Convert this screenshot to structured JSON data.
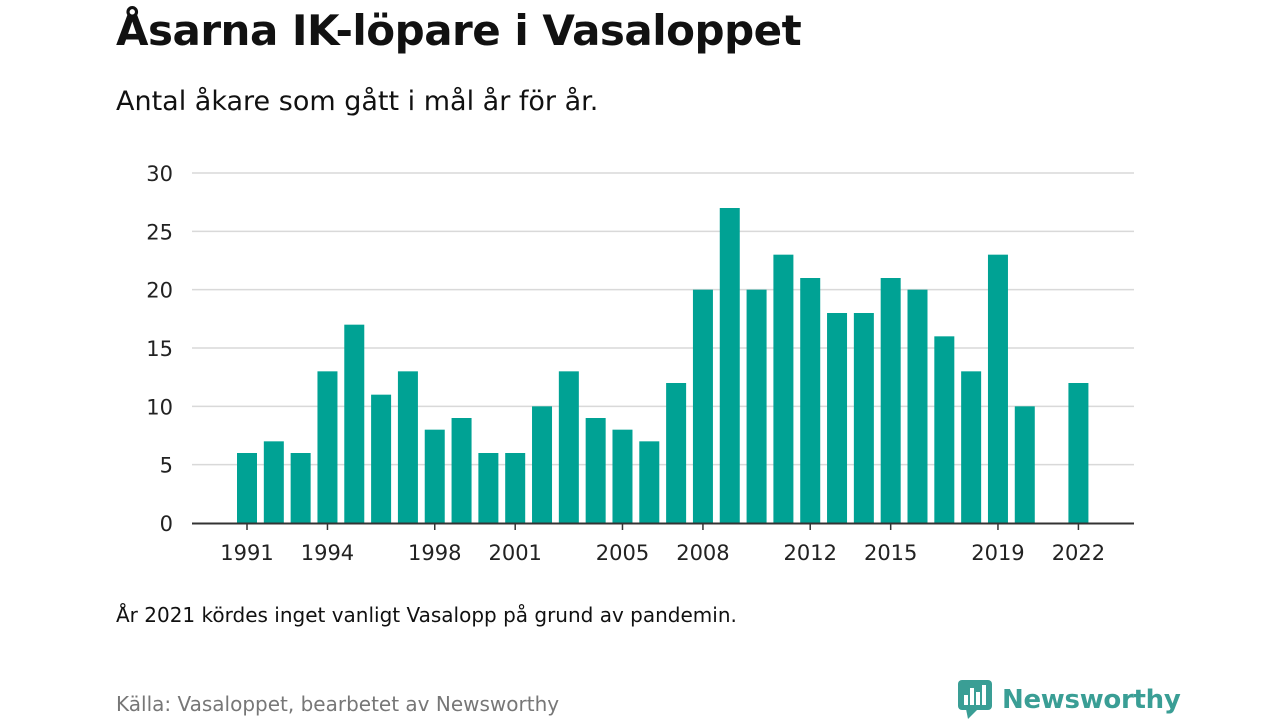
{
  "title": "Åsarna IK-löpare i Vasaloppet",
  "subtitle": "Antal åkare som gått i mål år för år.",
  "note": "År 2021 kördes inget vanligt Vasalopp på grund av pandemin.",
  "source": "Källa: Vasaloppet, bearbetet av Newsworthy",
  "logo": {
    "text": "Newsworthy",
    "icon": "bar-chart-speech-bubble-icon",
    "color": "#3a9e95"
  },
  "colors": {
    "bar": "#00a294",
    "grid": "#d9d9d9",
    "axis": "#333333"
  },
  "chart_data": {
    "type": "bar",
    "categories": [
      1991,
      1992,
      1993,
      1994,
      1995,
      1996,
      1997,
      1998,
      1999,
      2000,
      2001,
      2002,
      2003,
      2004,
      2005,
      2006,
      2007,
      2008,
      2009,
      2010,
      2011,
      2012,
      2013,
      2014,
      2015,
      2016,
      2017,
      2018,
      2019,
      2020,
      2021,
      2022
    ],
    "values": [
      6,
      7,
      6,
      13,
      17,
      11,
      13,
      8,
      9,
      6,
      6,
      10,
      13,
      9,
      8,
      7,
      12,
      20,
      27,
      20,
      23,
      21,
      18,
      18,
      21,
      20,
      16,
      13,
      23,
      10,
      null,
      12
    ],
    "x_tick_labels": [
      "1991",
      "1994",
      "1998",
      "2001",
      "2005",
      "2008",
      "2012",
      "2015",
      "2019",
      "2022"
    ],
    "y_ticks": [
      "0",
      "5",
      "10",
      "15",
      "20",
      "25",
      "30"
    ],
    "ylim": [
      0,
      30
    ],
    "grid": true
  }
}
